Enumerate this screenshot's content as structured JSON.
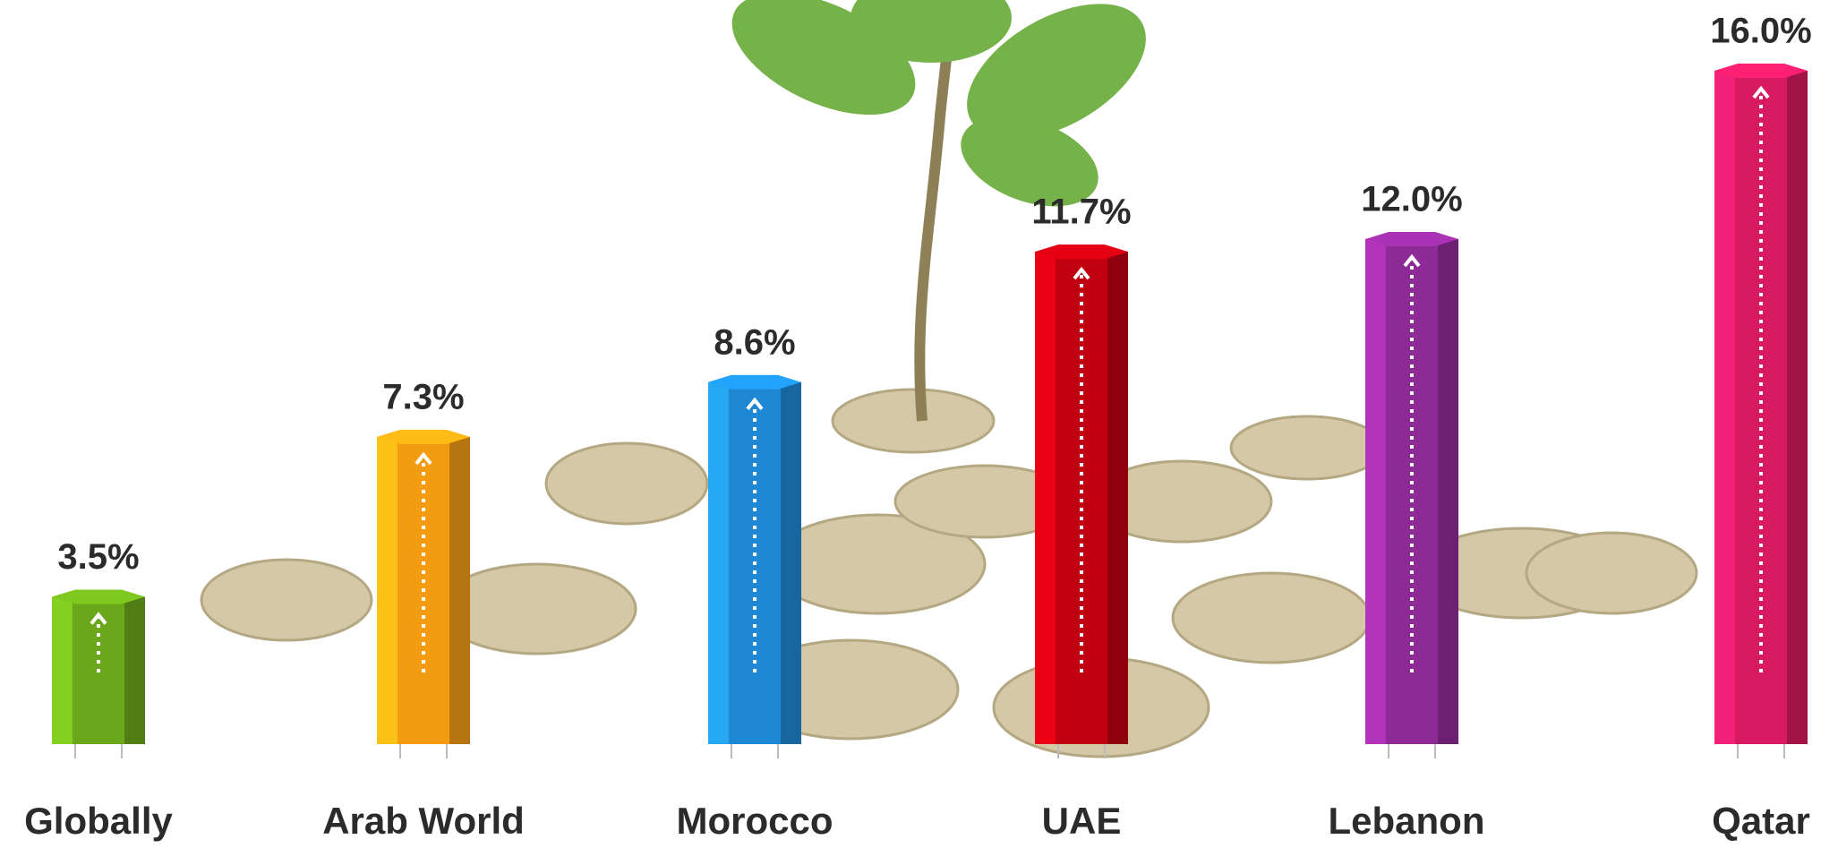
{
  "chart_data": {
    "type": "bar",
    "categories": [
      "Globally",
      "Arab World",
      "Morocco",
      "UAE",
      "Lebanon",
      "Qatar"
    ],
    "values": [
      3.5,
      7.3,
      8.6,
      11.7,
      12.0,
      16.0
    ],
    "value_labels": [
      "3.5%",
      "7.3%",
      "8.6%",
      "11.7%",
      "12.0%",
      "16.0%"
    ],
    "colors": [
      "#6aa71a",
      "#f39c12",
      "#1e88d4",
      "#c00010",
      "#8e2a96",
      "#d81b60"
    ]
  }
}
